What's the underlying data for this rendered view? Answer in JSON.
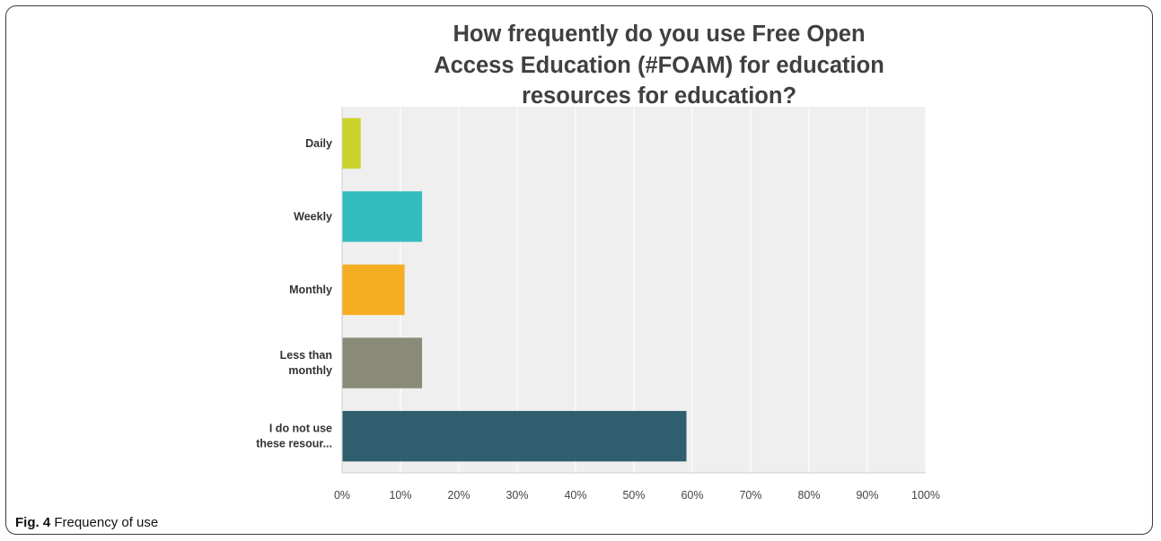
{
  "figure": {
    "label": "Fig. 4",
    "caption": "Frequency of use"
  },
  "chart_data": {
    "type": "bar",
    "orientation": "horizontal",
    "title": "How frequently do you use Free Open Access Education (#FOAM) for education resources for education?",
    "title_lines": [
      "How frequently do you use Free Open",
      "Access Education (#FOAM) for education",
      "resources for education?"
    ],
    "categories": [
      [
        "Daily"
      ],
      [
        "Weekly"
      ],
      [
        "Monthly"
      ],
      [
        "Less than",
        "monthly"
      ],
      [
        "I do not use",
        "these resour..."
      ]
    ],
    "values": [
      3.2,
      13.7,
      10.7,
      13.7,
      59.0
    ],
    "colors": [
      "#ccd42b",
      "#33bcbf",
      "#f5ae21",
      "#8a8a78",
      "#2f5f6e"
    ],
    "xlim": [
      0,
      100
    ],
    "x_ticks": [
      "0%",
      "10%",
      "20%",
      "30%",
      "40%",
      "50%",
      "60%",
      "70%",
      "80%",
      "90%",
      "100%"
    ],
    "grid": true,
    "plot_background": "#efefef"
  }
}
